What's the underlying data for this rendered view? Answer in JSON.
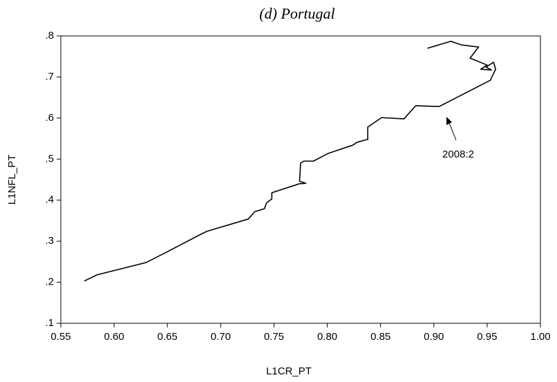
{
  "chart_data": {
    "type": "line",
    "title": "(d) Portugal",
    "x_label": "L1CR_PT",
    "y_label": "L1NFL_PT",
    "xlim": [
      0.55,
      1.0
    ],
    "xticks": [
      0.55,
      {
        "value": 0.6,
        "label": "0.60"
      },
      0.65,
      {
        "value": 0.7,
        "label": "0.70"
      },
      0.75,
      {
        "value": 0.8,
        "label": "0.80"
      },
      0.85,
      {
        "value": 0.9,
        "label": "0.90"
      },
      0.95,
      {
        "value": 1.0,
        "label": "1.00"
      }
    ],
    "ylim": [
      0.1,
      0.8
    ],
    "yticks": [
      {
        "value": 0.1,
        "label": ".1"
      },
      {
        "value": 0.2,
        "label": ".2"
      },
      {
        "value": 0.3,
        "label": ".3"
      },
      {
        "value": 0.4,
        "label": ".4"
      },
      {
        "value": 0.5,
        "label": ".5"
      },
      {
        "value": 0.6,
        "label": ".6"
      },
      {
        "value": 0.7,
        "label": ".7"
      },
      {
        "value": 0.8,
        "label": ".8"
      }
    ],
    "annotation": "2008:2",
    "color": "#000000",
    "x": [
      0.572,
      0.584,
      0.63,
      0.649,
      0.68,
      0.687,
      0.726,
      0.732,
      0.741,
      0.743,
      0.748,
      0.748,
      0.774,
      0.78,
      0.774,
      0.775,
      0.778,
      0.787,
      0.801,
      0.824,
      0.828,
      0.838,
      0.838,
      0.851,
      0.872,
      0.883,
      0.905,
      0.953,
      0.958,
      0.956,
      0.949,
      0.954,
      0.944,
      0.95,
      0.934,
      0.942,
      0.926,
      0.916,
      0.894
    ],
    "values": [
      0.203,
      0.218,
      0.248,
      0.273,
      0.315,
      0.324,
      0.354,
      0.372,
      0.379,
      0.393,
      0.403,
      0.418,
      0.44,
      0.441,
      0.446,
      0.49,
      0.495,
      0.495,
      0.514,
      0.534,
      0.541,
      0.548,
      0.578,
      0.601,
      0.598,
      0.63,
      0.628,
      0.692,
      0.719,
      0.736,
      0.724,
      0.717,
      0.719,
      0.729,
      0.746,
      0.773,
      0.778,
      0.787,
      0.77
    ]
  }
}
